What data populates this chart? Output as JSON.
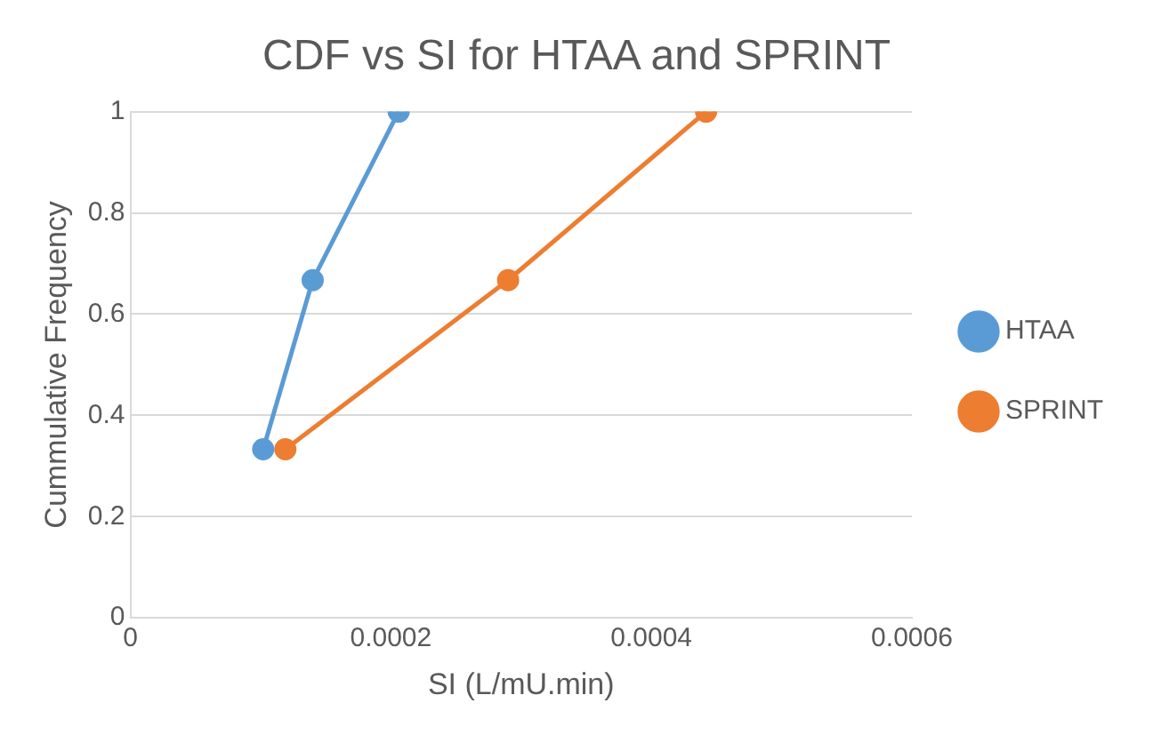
{
  "chart_data": {
    "type": "line",
    "title": "CDF vs SI for HTAA and SPRINT",
    "xlabel": "SI (L/mU.min)",
    "ylabel": "Cummulative Frequency",
    "series": [
      {
        "name": "HTAA",
        "color": "#5b9bd5",
        "x": [
          0.000102,
          0.00014,
          0.000206
        ],
        "values": [
          0.333,
          0.667,
          1
        ]
      },
      {
        "name": "SPRINT",
        "color": "#ed7d31",
        "x": [
          0.000119,
          0.00029,
          0.000442
        ],
        "values": [
          0.333,
          0.667,
          1
        ]
      }
    ],
    "xlim": [
      0,
      0.0006
    ],
    "xticks": [
      0,
      0.0002,
      0.0004,
      0.0006
    ],
    "ylim": [
      0,
      1
    ],
    "yticks": [
      0,
      0.2,
      0.4,
      0.6,
      0.8,
      1
    ],
    "grid": "y",
    "legend": "right",
    "marker": "circle",
    "line_style": "solid"
  }
}
